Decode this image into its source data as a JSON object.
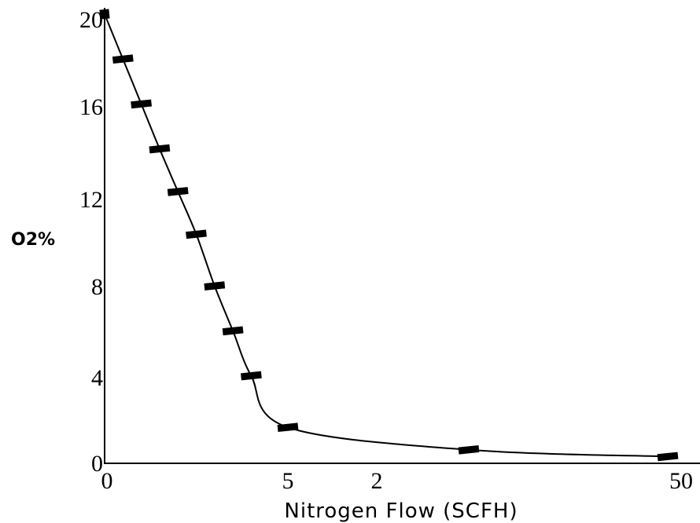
{
  "chart_data": {
    "type": "line",
    "title": "",
    "xlabel": "Nitrogen Flow (SCFH)",
    "ylabel": "O2%",
    "ylim": [
      0,
      20
    ],
    "grid": false,
    "x_ticks": [
      "0",
      "5",
      "2",
      "50"
    ],
    "y_ticks": [
      "0",
      "4",
      "8",
      "12",
      "16",
      "20"
    ],
    "series": [
      {
        "x": [
          0,
          0.5,
          1,
          1.5,
          2,
          2.5,
          3,
          3.5,
          4,
          5,
          20,
          50
        ],
        "values": [
          20,
          18,
          16,
          14,
          12.1,
          10.2,
          7.9,
          5.9,
          3.9,
          1.6,
          0.6,
          0.3
        ]
      }
    ]
  }
}
